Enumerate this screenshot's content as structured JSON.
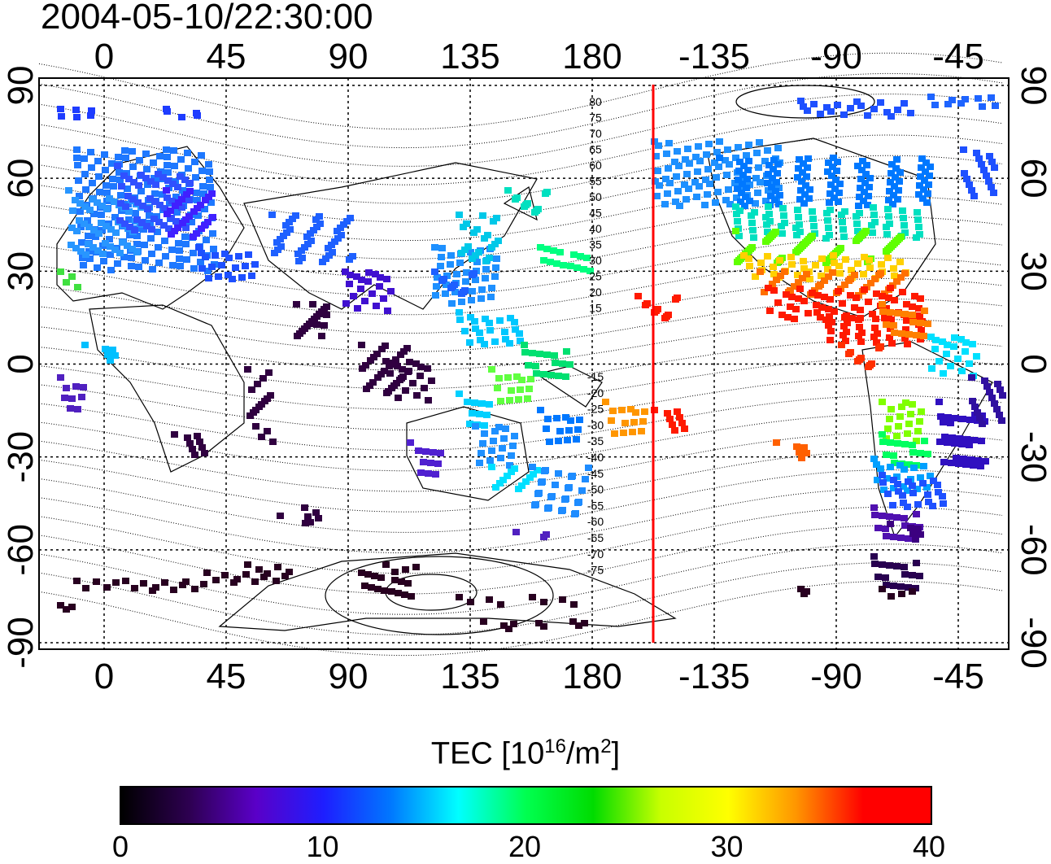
{
  "title": "2004-05-10/22:30:00",
  "map": {
    "top_lon_ticks": [
      "0",
      "45",
      "90",
      "135",
      "180",
      "-135",
      "-90",
      "-45"
    ],
    "bottom_lon_ticks": [
      "0",
      "45",
      "90",
      "135",
      "180",
      "-135",
      "-90",
      "-45"
    ],
    "lat_ticks": [
      "90",
      "60",
      "30",
      "0",
      "-30",
      "-60",
      "-90"
    ],
    "contour_labels_north": [
      "80",
      "75",
      "70",
      "65",
      "60",
      "55",
      "50",
      "45",
      "40",
      "35",
      "30",
      "25",
      "20",
      "15"
    ],
    "contour_labels_south": [
      "-15",
      "-20",
      "-25",
      "-30",
      "-35",
      "-40",
      "-45",
      "-50",
      "-55",
      "-60",
      "-65",
      "-70",
      "-75"
    ],
    "terminator_color": "#ff0000",
    "grid": true
  },
  "colorbar": {
    "label_main": "TEC  [10",
    "label_sup1": "16",
    "label_mid": "/m",
    "label_sup2": "2",
    "label_end": "]",
    "ticks": [
      "0",
      "10",
      "20",
      "30",
      "40"
    ],
    "colormap": [
      "#000000",
      "#2d0050",
      "#5a00c8",
      "#1e1eff",
      "#0078ff",
      "#00ffff",
      "#00ff50",
      "#00dc00",
      "#c8ff00",
      "#ffff00",
      "#ff9600",
      "#ff0000",
      "#ff0000"
    ]
  }
}
